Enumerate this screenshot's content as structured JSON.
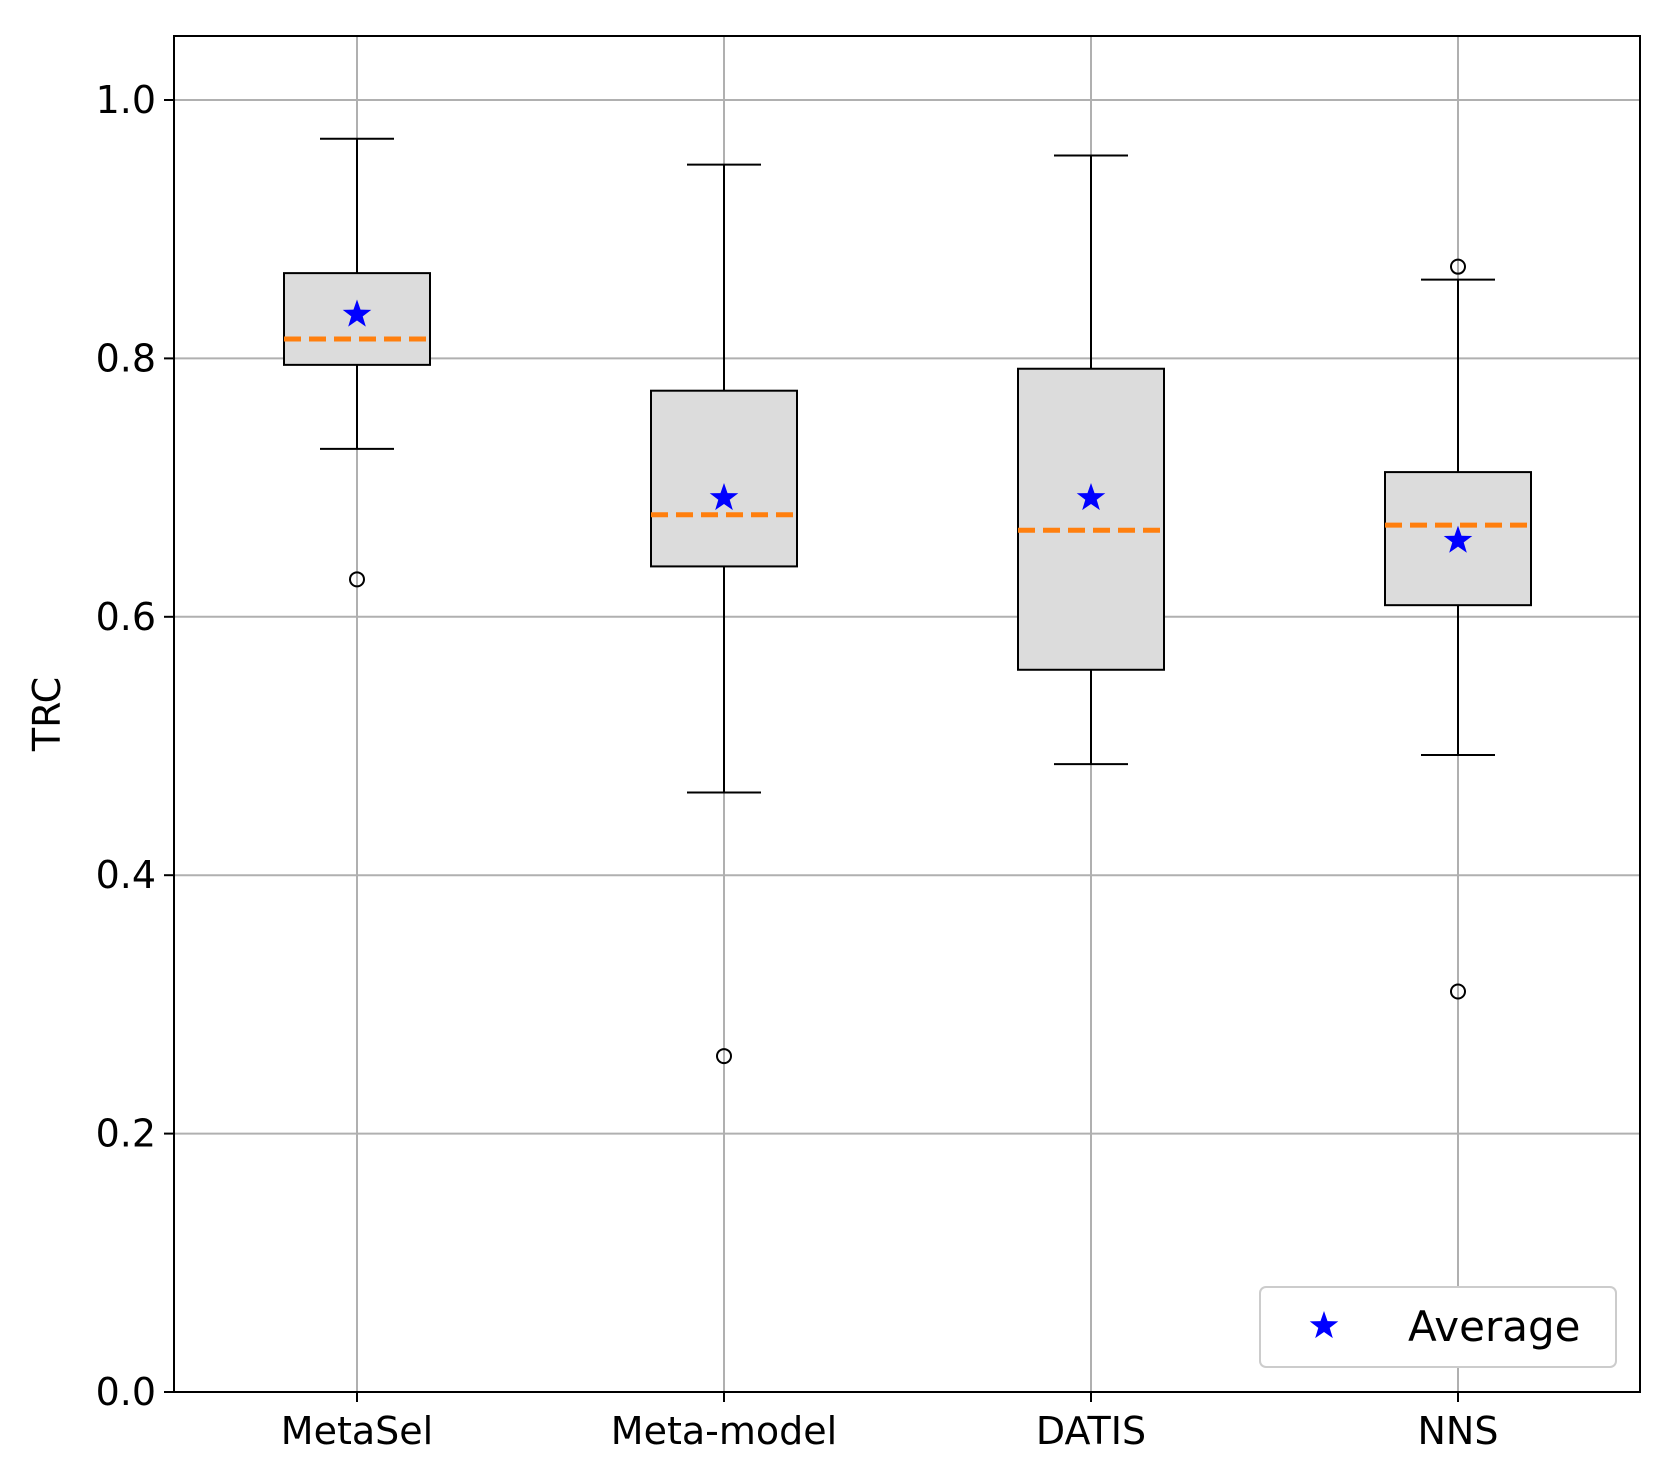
{
  "chart_data": {
    "type": "boxplot",
    "title": "",
    "xlabel": "",
    "ylabel": "TRC",
    "ylim": [
      0.0,
      1.05
    ],
    "yticks": [
      0.0,
      0.2,
      0.4,
      0.6,
      0.8,
      1.0
    ],
    "ytick_labels": [
      "0.0",
      "0.2",
      "0.4",
      "0.6",
      "0.8",
      "1.0"
    ],
    "grid": true,
    "categories": [
      "MetaSel",
      "Meta-model",
      "DATIS",
      "NNS"
    ],
    "boxes": [
      {
        "name": "MetaSel",
        "whisker_low": 0.73,
        "q1": 0.795,
        "median": 0.815,
        "q3": 0.866,
        "whisker_high": 0.97,
        "mean": 0.834,
        "outliers": [
          0.629
        ]
      },
      {
        "name": "Meta-model",
        "whisker_low": 0.464,
        "q1": 0.639,
        "median": 0.679,
        "q3": 0.775,
        "whisker_high": 0.95,
        "mean": 0.692,
        "outliers": [
          0.26
        ]
      },
      {
        "name": "DATIS",
        "whisker_low": 0.486,
        "q1": 0.559,
        "median": 0.667,
        "q3": 0.792,
        "whisker_high": 0.957,
        "mean": 0.692,
        "outliers": []
      },
      {
        "name": "NNS",
        "whisker_low": 0.493,
        "q1": 0.609,
        "median": 0.671,
        "q3": 0.712,
        "whisker_high": 0.861,
        "mean": 0.659,
        "outliers": [
          0.871,
          0.31
        ]
      }
    ],
    "legend": {
      "label": "Average",
      "location": "bottom-right"
    },
    "colors": {
      "box_fill": "#dcdcdc",
      "median": "#ff7f0e",
      "mean": "#0000ff",
      "grid": "#b0b0b0"
    }
  }
}
